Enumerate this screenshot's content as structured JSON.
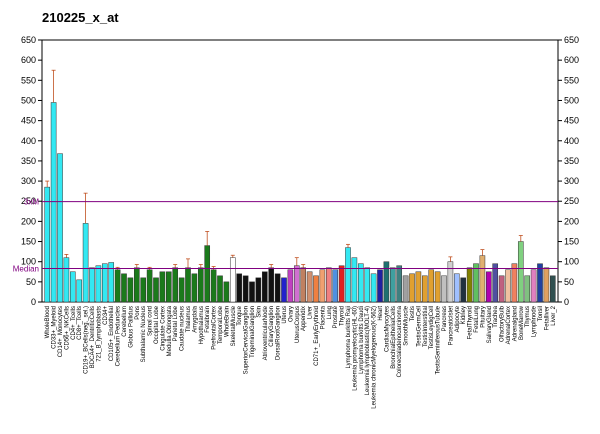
{
  "chart_data": {
    "type": "bar",
    "title": "210225_x_at",
    "ylim": [
      0,
      650
    ],
    "yticks": [
      0,
      50,
      100,
      150,
      200,
      250,
      300,
      350,
      400,
      450,
      500,
      550,
      600,
      650
    ],
    "y2lim": [
      0,
      650
    ],
    "y2ticks": [
      0,
      50,
      100,
      150,
      200,
      250,
      300,
      350,
      400,
      450,
      500,
      550,
      600,
      650
    ],
    "reference_lines": [
      {
        "label": "3xM",
        "value": 249,
        "color": "#800080"
      },
      {
        "label": "Median",
        "value": 83,
        "color": "#800080"
      }
    ],
    "categories": [
      "WholeBlood",
      "CD33+_Myeloid",
      "CD14+_Monocytes",
      "CD56+_NKCells",
      "CD4+_Tcells",
      "CD8+_Tcells",
      "CD19+_BCells(neg._sel.)",
      "BDCA4+_DentriticCells",
      "721_B_lymphoblasts",
      "CD34+",
      "CD105+_Endothelial",
      "Cerebellum Peduncles",
      "Cerebellum",
      "Globus Pallidus",
      "Pons",
      "Subthalamic Nucleus",
      "Spinal cord",
      "Occipital Lobe",
      "Cingulate Cortex",
      "Medulla Oblongata",
      "Parietal Lobe",
      "Caudate nucleus",
      "Thalamus",
      "Amygdala",
      "Hypothalamus",
      "Fetalbrain",
      "PrefrontalCortex",
      "TemporalLobe",
      "WholeBrain",
      "SkeletalMuscle",
      "Tongue",
      "SuperiorCervicalGanglion",
      "TrigeminalGanglion",
      "Skin",
      "AtrioventricularNode",
      "CiliaryGanglion",
      "DorsalRootGanglion",
      "Uterus",
      "Ovary",
      "UterusCorpus",
      "Appendix",
      "Liver",
      "CD71+_EarlyErythroid",
      "Placenta",
      "Lung",
      "Prostate",
      "Thyroid",
      "Lymphoma burkitts Raji",
      "Leukemia promyelocytic(HL-60)",
      "Lymphoma burkitts Daudi",
      "Leukemia lymphoblastic(MOLT-4)",
      "Leukemia chronicMyelogenous(K-562)",
      "Heart",
      "CardiacMyocytes",
      "BronchialEpithelialCells",
      "Colorectaladenocarcinoma",
      "SmoothMuscle",
      "Testis",
      "TestisGermCell",
      "TestisInterstitial",
      "TestisLeydigCell",
      "TestisSeminiferousTubule",
      "Pancreas",
      "PancreaticIslet",
      "Adipocyte",
      "Kidney",
      "FetalThyroid",
      "FetalLung",
      "Pituitary",
      "SalivaryGland",
      "Trachea",
      "OlfactoryBulb",
      "AdrenalCortex",
      "Adrenalgland",
      "BoneMarrow",
      "Thymus",
      "Lymphnode",
      "Tonsil",
      "Fetalliver",
      "Liver_2"
    ],
    "values": [
      285,
      495,
      368,
      110,
      75,
      55,
      195,
      85,
      90,
      95,
      98,
      80,
      70,
      60,
      85,
      60,
      80,
      60,
      75,
      75,
      85,
      60,
      85,
      70,
      85,
      140,
      80,
      65,
      50,
      110,
      70,
      65,
      50,
      60,
      75,
      85,
      70,
      60,
      80,
      90,
      85,
      75,
      65,
      80,
      85,
      80,
      90,
      135,
      110,
      95,
      85,
      70,
      80,
      100,
      85,
      90,
      65,
      70,
      75,
      65,
      80,
      75,
      65,
      100,
      70,
      60,
      85,
      95,
      115,
      75,
      95,
      65,
      80,
      95,
      150,
      65,
      80,
      95,
      85,
      65
    ],
    "errors": [
      15,
      80,
      null,
      8,
      null,
      null,
      75,
      null,
      null,
      null,
      null,
      6,
      null,
      null,
      8,
      null,
      6,
      null,
      null,
      null,
      8,
      null,
      22,
      null,
      8,
      35,
      8,
      null,
      null,
      6,
      null,
      null,
      null,
      null,
      null,
      8,
      null,
      null,
      null,
      20,
      8,
      null,
      null,
      null,
      null,
      null,
      null,
      8,
      null,
      null,
      null,
      null,
      null,
      null,
      null,
      null,
      null,
      null,
      null,
      null,
      null,
      null,
      null,
      12,
      null,
      null,
      null,
      null,
      15,
      null,
      null,
      null,
      null,
      null,
      15,
      null,
      null,
      null,
      null,
      null
    ],
    "colors": [
      "#33e8f2",
      "#33e8f2",
      "#33e8f2",
      "#33e8f2",
      "#33e8f2",
      "#33e8f2",
      "#33e8f2",
      "#33e8f2",
      "#33e8f2",
      "#33e8f2",
      "#33e8f2",
      "#1b7a1b",
      "#1b7a1b",
      "#1b7a1b",
      "#1b7a1b",
      "#1b7a1b",
      "#1b7a1b",
      "#1b7a1b",
      "#1b7a1b",
      "#1b7a1b",
      "#1b7a1b",
      "#1b7a1b",
      "#1b7a1b",
      "#1b7a1b",
      "#1b7a1b",
      "#1b7a1b",
      "#1b7a1b",
      "#1b7a1b",
      "#1b7a1b",
      "#ffffff",
      "#111111",
      "#111111",
      "#111111",
      "#111111",
      "#111111",
      "#111111",
      "#111111",
      "#2222cc",
      "#c040c0",
      "#d070d0",
      "#c08060",
      "#d09070",
      "#ee8040",
      "#f0a070",
      "#f08080",
      "#5090e0",
      "#e02020",
      "#33e8f2",
      "#33e8f2",
      "#33e8f2",
      "#33e8f2",
      "#33e8f2",
      "#2020a0",
      "#207070",
      "#40a0a0",
      "#408080",
      "#a0a0a0",
      "#e0a030",
      "#e0a030",
      "#e0a030",
      "#e0a030",
      "#e0a030",
      "#c0c0c0",
      "#d0d0d0",
      "#a0c0ff",
      "#203040",
      "#808000",
      "#60c060",
      "#e0b070",
      "#b000b0",
      "#5050a0",
      "#c06080",
      "#f0c0a0",
      "#f08060",
      "#80d080",
      "#80c080",
      "#e080c0",
      "#2040a0",
      "#e0a060",
      "#305050"
    ]
  }
}
